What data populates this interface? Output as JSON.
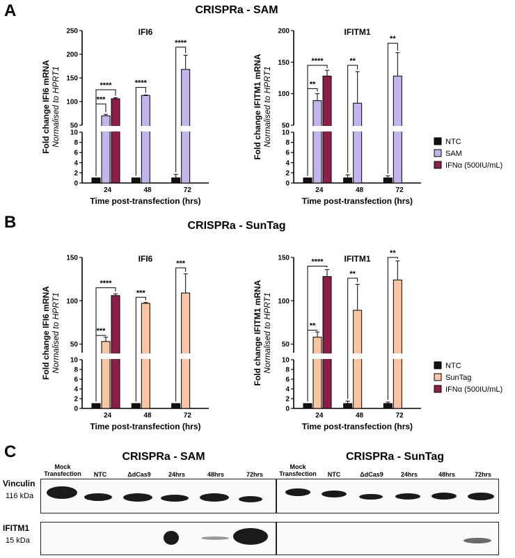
{
  "panels": {
    "A": "A",
    "B": "B",
    "C": "C"
  },
  "section_titles": {
    "sam": "CRISPRa - SAM",
    "suntag": "CRISPRa - SunTag"
  },
  "colors": {
    "NTC": "#111111",
    "SAM": "#c3b5ec",
    "SunTag": "#f9c5a2",
    "IFNa": "#8c1f4a"
  },
  "legends": {
    "A": [
      {
        "name": "NTC",
        "color": "#111111"
      },
      {
        "name": "SAM",
        "color": "#c3b5ec"
      },
      {
        "name": "IFNα (500IU/mL)",
        "color": "#8c1f4a"
      }
    ],
    "B": [
      {
        "name": "NTC",
        "color": "#111111"
      },
      {
        "name": "SunTag",
        "color": "#f9c5a2"
      },
      {
        "name": "IFNα (500IU/mL)",
        "color": "#8c1f4a"
      }
    ]
  },
  "chart_data": [
    {
      "type": "bar",
      "title": "IFI6",
      "panel": "A",
      "xlabel": "Time post-transfection (hrs)",
      "ylabel": "Fold change  IFI6 mRNA",
      "ylabel2": "Normalised to HPRT1",
      "categories": [
        "24",
        "48",
        "72"
      ],
      "y_axis_break": {
        "lower": [
          0,
          10
        ],
        "upper": [
          50,
          250
        ]
      },
      "lower_ticks": [
        "0",
        "2",
        "4",
        "6",
        "8",
        "10"
      ],
      "upper_ticks": [
        "50",
        "100",
        "150",
        "200",
        "250"
      ],
      "series": [
        {
          "name": "NTC",
          "values": [
            1,
            1,
            1
          ],
          "errors": [
            0,
            0,
            0.7
          ]
        },
        {
          "name": "SAM",
          "values": [
            70,
            113,
            168
          ],
          "errors": [
            3,
            1,
            30
          ]
        },
        {
          "name": "IFNα (500IU/mL)",
          "values": [
            106,
            null,
            null
          ],
          "errors": [
            2,
            0,
            0
          ]
        }
      ],
      "annotations": [
        {
          "text": "***",
          "from": [
            0,
            0
          ],
          "to": [
            0,
            1
          ],
          "y": 95
        },
        {
          "text": "****",
          "from": [
            0,
            0
          ],
          "to": [
            0,
            2
          ],
          "y": 125
        },
        {
          "text": "****",
          "from": [
            1,
            0
          ],
          "to": [
            1,
            1
          ],
          "y": 130
        },
        {
          "text": "****",
          "from": [
            2,
            0
          ],
          "to": [
            2,
            1
          ],
          "y": 215
        }
      ]
    },
    {
      "type": "bar",
      "title": "IFITM1",
      "panel": "A",
      "xlabel": "Time post-transfection (hrs)",
      "ylabel": "Fold change  IFITM1 mRNA",
      "ylabel2": "Normalised to HPRT1",
      "categories": [
        "24",
        "48",
        "72"
      ],
      "y_axis_break": {
        "lower": [
          0,
          10
        ],
        "upper": [
          50,
          200
        ]
      },
      "lower_ticks": [
        "0",
        "2",
        "4",
        "6",
        "8",
        "10"
      ],
      "upper_ticks": [
        "50",
        "100",
        "150",
        "200"
      ],
      "series": [
        {
          "name": "NTC",
          "values": [
            1,
            1,
            1
          ],
          "errors": [
            0,
            0.6,
            0.4
          ]
        },
        {
          "name": "SAM",
          "values": [
            89,
            85,
            128
          ],
          "errors": [
            11,
            50,
            37
          ]
        },
        {
          "name": "IFNα (500IU/mL)",
          "values": [
            128,
            null,
            null
          ],
          "errors": [
            9,
            0,
            0
          ]
        }
      ],
      "annotations": [
        {
          "text": "**",
          "from": [
            0,
            0
          ],
          "to": [
            0,
            1
          ],
          "y": 108
        },
        {
          "text": "****",
          "from": [
            0,
            0
          ],
          "to": [
            0,
            2
          ],
          "y": 145
        },
        {
          "text": "**",
          "from": [
            1,
            0
          ],
          "to": [
            1,
            1
          ],
          "y": 145
        },
        {
          "text": "**",
          "from": [
            2,
            0
          ],
          "to": [
            2,
            1
          ],
          "y": 180
        }
      ]
    },
    {
      "type": "bar",
      "title": "IFI6",
      "panel": "B",
      "xlabel": "Time post-transfection (hrs)",
      "ylabel": "Fold change  IFI6 mRNA",
      "ylabel2": "Normalised to HPRT1",
      "categories": [
        "24",
        "48",
        "72"
      ],
      "y_axis_break": {
        "lower": [
          0,
          10
        ],
        "upper": [
          40,
          150
        ]
      },
      "lower_ticks": [
        "0",
        "2",
        "4",
        "6",
        "8",
        "10"
      ],
      "upper_ticks": [
        "50",
        "100",
        "150"
      ],
      "series": [
        {
          "name": "NTC",
          "values": [
            1,
            1,
            1
          ],
          "errors": [
            0,
            0,
            0
          ]
        },
        {
          "name": "SunTag",
          "values": [
            53,
            97,
            109
          ],
          "errors": [
            5,
            1,
            22
          ]
        },
        {
          "name": "IFNα (500IU/mL)",
          "values": [
            106,
            null,
            null
          ],
          "errors": [
            2,
            0,
            0
          ]
        }
      ],
      "annotations": [
        {
          "text": "***",
          "from": [
            0,
            0
          ],
          "to": [
            0,
            1
          ],
          "y": 60
        },
        {
          "text": "****",
          "from": [
            0,
            0
          ],
          "to": [
            0,
            2
          ],
          "y": 115
        },
        {
          "text": "***",
          "from": [
            1,
            0
          ],
          "to": [
            1,
            1
          ],
          "y": 104
        },
        {
          "text": "***",
          "from": [
            2,
            0
          ],
          "to": [
            2,
            1
          ],
          "y": 138
        }
      ]
    },
    {
      "type": "bar",
      "title": "IFITM1",
      "panel": "B",
      "xlabel": "Time post-transfection (hrs)",
      "ylabel": "Fold change  IFITM1 mRNA",
      "ylabel2": "Normalised to HPRT1",
      "categories": [
        "24",
        "48",
        "72"
      ],
      "y_axis_break": {
        "lower": [
          0,
          10
        ],
        "upper": [
          40,
          150
        ]
      },
      "lower_ticks": [
        "0",
        "2",
        "4",
        "6",
        "8",
        "10"
      ],
      "upper_ticks": [
        "50",
        "100",
        "150"
      ],
      "series": [
        {
          "name": "NTC",
          "values": [
            1,
            1,
            1
          ],
          "errors": [
            0,
            0.5,
            0.3
          ]
        },
        {
          "name": "SunTag",
          "values": [
            58,
            89,
            124
          ],
          "errors": [
            6,
            30,
            22
          ]
        },
        {
          "name": "IFNα (500IU/mL)",
          "values": [
            128,
            null,
            null
          ],
          "errors": [
            8,
            0,
            0
          ]
        }
      ],
      "annotations": [
        {
          "text": "**",
          "from": [
            0,
            0
          ],
          "to": [
            0,
            1
          ],
          "y": 66
        },
        {
          "text": "****",
          "from": [
            0,
            0
          ],
          "to": [
            0,
            2
          ],
          "y": 140
        },
        {
          "text": "**",
          "from": [
            1,
            0
          ],
          "to": [
            1,
            1
          ],
          "y": 126
        },
        {
          "text": "**",
          "from": [
            2,
            0
          ],
          "to": [
            2,
            1
          ],
          "y": 150
        }
      ]
    }
  ],
  "western": {
    "sam_title": "CRISPRa - SAM",
    "suntag_title": "CRISPRa - SunTag",
    "lanes_sam": [
      "Mock Transfection",
      "NTC",
      "ΔdCas9",
      "24hrs",
      "48hrs",
      "72hrs"
    ],
    "lanes_suntag": [
      "Mock Transfection",
      "NTC",
      "ΔdCas9",
      "24hrs",
      "48hrs",
      "72hrs"
    ],
    "vinculin_label": "Vinculin",
    "vinculin_kda": "116 kDa",
    "ifitm1_label": "IFITM1",
    "ifitm1_kda": "15 kDa"
  }
}
